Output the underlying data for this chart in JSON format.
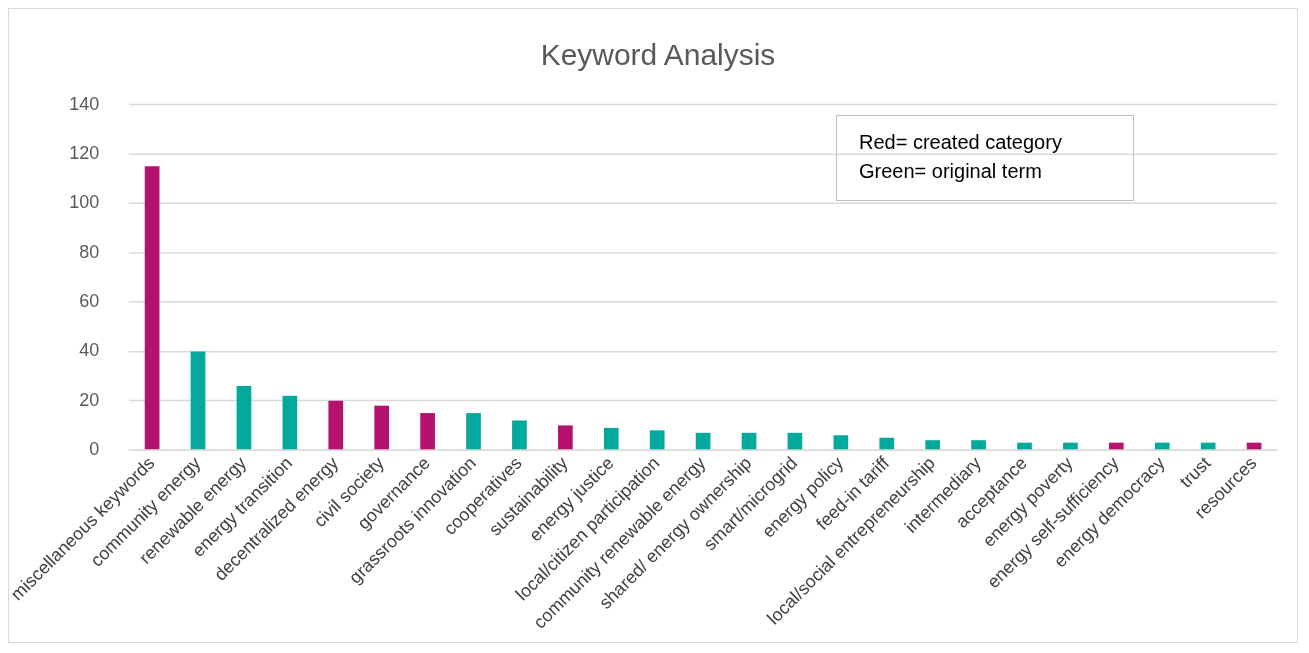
{
  "chart_data": {
    "type": "bar",
    "title": "Keyword Analysis",
    "categories": [
      "miscellaneous keywords",
      "community energy",
      "renewable energy",
      "energy transition",
      "decentralized energy",
      "civil society",
      "governance",
      "grassroots innovation",
      "cooperatives",
      "sustainability",
      "energy justice",
      "local/citizen participation",
      "community renewable energy",
      "shared/ energy ownership",
      "smart/microgrid",
      "energy policy",
      "feed-in tariff",
      "local/social entrepreneurship",
      "intermediary",
      "acceptance",
      "energy poverty",
      "energy self-sufficiency",
      "energy democracy",
      "trust",
      "resources"
    ],
    "values": [
      115,
      40,
      26,
      22,
      20,
      18,
      15,
      15,
      12,
      10,
      9,
      8,
      7,
      7,
      7,
      6,
      5,
      4,
      4,
      3,
      3,
      3,
      3,
      3,
      3
    ],
    "colors": [
      "#b5126f",
      "#04a99d",
      "#04a99d",
      "#04a99d",
      "#b5126f",
      "#b5126f",
      "#b5126f",
      "#04a99d",
      "#04a99d",
      "#b5126f",
      "#04a99d",
      "#04a99d",
      "#04a99d",
      "#04a99d",
      "#04a99d",
      "#04a99d",
      "#04a99d",
      "#04a99d",
      "#04a99d",
      "#04a99d",
      "#04a99d",
      "#b5126f",
      "#04a99d",
      "#04a99d",
      "#b5126f"
    ],
    "ylim": [
      0,
      140
    ],
    "yticks": [
      0,
      20,
      40,
      60,
      80,
      100,
      120,
      140
    ],
    "grid": "y",
    "legend": false,
    "annotations": [
      "Red= created category",
      "Green= original term"
    ]
  }
}
